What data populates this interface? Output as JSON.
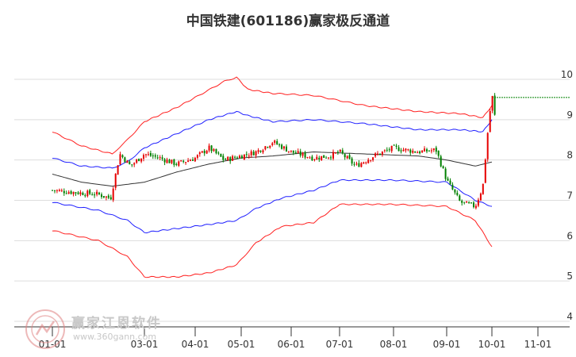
{
  "title": "中国铁建(601186)赢家极反通道",
  "watermark": {
    "name": "赢家江恩软件",
    "url": "www.360gann.com"
  },
  "colors": {
    "up": "#e60000",
    "down": "#008000",
    "outer": "#ff2020",
    "inner": "#2020ff",
    "mid": "#333333",
    "grid": "#dddddd",
    "refline": "#008000"
  },
  "chart_data": {
    "type": "candlestick",
    "title": "中国铁建(601186)赢家极反通道",
    "x_ticks": [
      "01-01",
      "03-01",
      "04-01",
      "05-01",
      "06-01",
      "07-01",
      "08-01",
      "09-01",
      "10-01",
      "11-01"
    ],
    "y_ticks": [
      "10",
      "9",
      "8",
      "7",
      "6",
      "5",
      "4"
    ],
    "ylim": [
      4,
      10
    ],
    "price_anchors": [
      {
        "date": "01-01",
        "close": 7.25
      },
      {
        "date": "01-15",
        "close": 7.2
      },
      {
        "date": "02-01",
        "close": 7.15
      },
      {
        "date": "02-09",
        "close": 7.05
      },
      {
        "date": "02-15",
        "close": 8.15
      },
      {
        "date": "02-22",
        "close": 7.85
      },
      {
        "date": "03-01",
        "close": 8.15
      },
      {
        "date": "03-10",
        "close": 8.05
      },
      {
        "date": "03-20",
        "close": 7.9
      },
      {
        "date": "04-01",
        "close": 8.05
      },
      {
        "date": "04-10",
        "close": 8.3
      },
      {
        "date": "04-20",
        "close": 8.0
      },
      {
        "date": "05-01",
        "close": 8.1
      },
      {
        "date": "05-10",
        "close": 8.2
      },
      {
        "date": "05-20",
        "close": 8.45
      },
      {
        "date": "06-01",
        "close": 8.2
      },
      {
        "date": "06-15",
        "close": 8.05
      },
      {
        "date": "06-25",
        "close": 8.1
      },
      {
        "date": "07-01",
        "close": 8.2
      },
      {
        "date": "07-10",
        "close": 7.85
      },
      {
        "date": "07-20",
        "close": 8.1
      },
      {
        "date": "08-01",
        "close": 8.3
      },
      {
        "date": "08-15",
        "close": 8.2
      },
      {
        "date": "08-25",
        "close": 8.25
      },
      {
        "date": "09-01",
        "close": 7.5
      },
      {
        "date": "09-10",
        "close": 6.95
      },
      {
        "date": "09-20",
        "close": 6.85
      },
      {
        "date": "09-25",
        "close": 7.35
      },
      {
        "date": "09-28",
        "close": 8.6
      },
      {
        "date": "10-01",
        "close": 9.65
      },
      {
        "date": "10-04",
        "close": 8.75
      }
    ],
    "channel": {
      "upper_outer": [
        {
          "date": "01-01",
          "value": 8.7
        },
        {
          "date": "01-20",
          "value": 8.35
        },
        {
          "date": "02-10",
          "value": 8.15
        },
        {
          "date": "02-20",
          "value": 8.5
        },
        {
          "date": "03-01",
          "value": 8.95
        },
        {
          "date": "03-20",
          "value": 9.3
        },
        {
          "date": "04-01",
          "value": 9.55
        },
        {
          "date": "04-20",
          "value": 9.95
        },
        {
          "date": "04-28",
          "value": 10.05
        },
        {
          "date": "05-05",
          "value": 9.75
        },
        {
          "date": "05-20",
          "value": 9.65
        },
        {
          "date": "06-15",
          "value": 9.6
        },
        {
          "date": "07-15",
          "value": 9.35
        },
        {
          "date": "08-15",
          "value": 9.2
        },
        {
          "date": "09-10",
          "value": 9.15
        },
        {
          "date": "09-25",
          "value": 9.05
        },
        {
          "date": "10-01",
          "value": 9.35
        }
      ],
      "upper_inner": [
        {
          "date": "01-01",
          "value": 8.05
        },
        {
          "date": "01-20",
          "value": 7.85
        },
        {
          "date": "02-10",
          "value": 7.8
        },
        {
          "date": "02-20",
          "value": 7.95
        },
        {
          "date": "03-01",
          "value": 8.3
        },
        {
          "date": "03-20",
          "value": 8.65
        },
        {
          "date": "04-10",
          "value": 9.0
        },
        {
          "date": "04-28",
          "value": 9.2
        },
        {
          "date": "05-05",
          "value": 9.1
        },
        {
          "date": "05-20",
          "value": 8.95
        },
        {
          "date": "06-15",
          "value": 9.0
        },
        {
          "date": "07-15",
          "value": 8.9
        },
        {
          "date": "08-15",
          "value": 8.75
        },
        {
          "date": "09-10",
          "value": 8.75
        },
        {
          "date": "09-25",
          "value": 8.7
        },
        {
          "date": "10-01",
          "value": 9.0
        }
      ],
      "middle": [
        {
          "date": "01-01",
          "value": 7.65
        },
        {
          "date": "01-20",
          "value": 7.45
        },
        {
          "date": "02-10",
          "value": 7.35
        },
        {
          "date": "03-01",
          "value": 7.45
        },
        {
          "date": "03-20",
          "value": 7.7
        },
        {
          "date": "04-10",
          "value": 7.9
        },
        {
          "date": "05-01",
          "value": 8.05
        },
        {
          "date": "05-20",
          "value": 8.1
        },
        {
          "date": "06-15",
          "value": 8.2
        },
        {
          "date": "07-15",
          "value": 8.15
        },
        {
          "date": "08-15",
          "value": 8.1
        },
        {
          "date": "09-01",
          "value": 8.0
        },
        {
          "date": "09-20",
          "value": 7.85
        },
        {
          "date": "10-01",
          "value": 7.95
        }
      ],
      "lower_inner": [
        {
          "date": "01-01",
          "value": 6.95
        },
        {
          "date": "02-01",
          "value": 6.75
        },
        {
          "date": "02-20",
          "value": 6.5
        },
        {
          "date": "03-01",
          "value": 6.2
        },
        {
          "date": "03-20",
          "value": 6.3
        },
        {
          "date": "04-10",
          "value": 6.4
        },
        {
          "date": "04-28",
          "value": 6.5
        },
        {
          "date": "05-10",
          "value": 6.8
        },
        {
          "date": "05-25",
          "value": 7.05
        },
        {
          "date": "06-15",
          "value": 7.25
        },
        {
          "date": "07-01",
          "value": 7.5
        },
        {
          "date": "08-01",
          "value": 7.5
        },
        {
          "date": "09-01",
          "value": 7.45
        },
        {
          "date": "09-20",
          "value": 7.0
        },
        {
          "date": "10-01",
          "value": 6.85
        }
      ],
      "lower_outer": [
        {
          "date": "01-01",
          "value": 6.25
        },
        {
          "date": "02-01",
          "value": 6.0
        },
        {
          "date": "02-20",
          "value": 5.6
        },
        {
          "date": "03-01",
          "value": 5.1
        },
        {
          "date": "03-20",
          "value": 5.1
        },
        {
          "date": "04-10",
          "value": 5.2
        },
        {
          "date": "04-28",
          "value": 5.4
        },
        {
          "date": "05-10",
          "value": 5.95
        },
        {
          "date": "05-25",
          "value": 6.35
        },
        {
          "date": "06-15",
          "value": 6.45
        },
        {
          "date": "07-01",
          "value": 6.9
        },
        {
          "date": "08-01",
          "value": 6.9
        },
        {
          "date": "09-01",
          "value": 6.85
        },
        {
          "date": "09-20",
          "value": 6.5
        },
        {
          "date": "10-01",
          "value": 5.85
        }
      ]
    },
    "reference_line": {
      "value": 9.55,
      "from": "10-01"
    },
    "grid": true
  }
}
